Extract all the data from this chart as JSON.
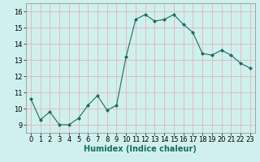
{
  "x": [
    0,
    1,
    2,
    3,
    4,
    5,
    6,
    7,
    8,
    9,
    10,
    11,
    12,
    13,
    14,
    15,
    16,
    17,
    18,
    19,
    20,
    21,
    22,
    23
  ],
  "y": [
    10.6,
    9.3,
    9.8,
    9.0,
    9.0,
    9.4,
    10.2,
    10.8,
    9.9,
    10.2,
    13.2,
    15.5,
    15.8,
    15.4,
    15.5,
    15.8,
    15.2,
    14.7,
    13.4,
    13.3,
    13.6,
    13.3,
    12.8,
    12.5
  ],
  "line_color": "#1a6b5e",
  "marker": "D",
  "marker_size": 2.0,
  "bg_color": "#cff0ee",
  "grid_color": "#e8aaaa",
  "xlabel": "Humidex (Indice chaleur)",
  "xlim": [
    -0.5,
    23.5
  ],
  "ylim": [
    8.5,
    16.5
  ],
  "yticks": [
    9,
    10,
    11,
    12,
    13,
    14,
    15,
    16
  ],
  "xticks": [
    0,
    1,
    2,
    3,
    4,
    5,
    6,
    7,
    8,
    9,
    10,
    11,
    12,
    13,
    14,
    15,
    16,
    17,
    18,
    19,
    20,
    21,
    22,
    23
  ],
  "xlabel_fontsize": 7.0,
  "tick_fontsize": 6.0
}
